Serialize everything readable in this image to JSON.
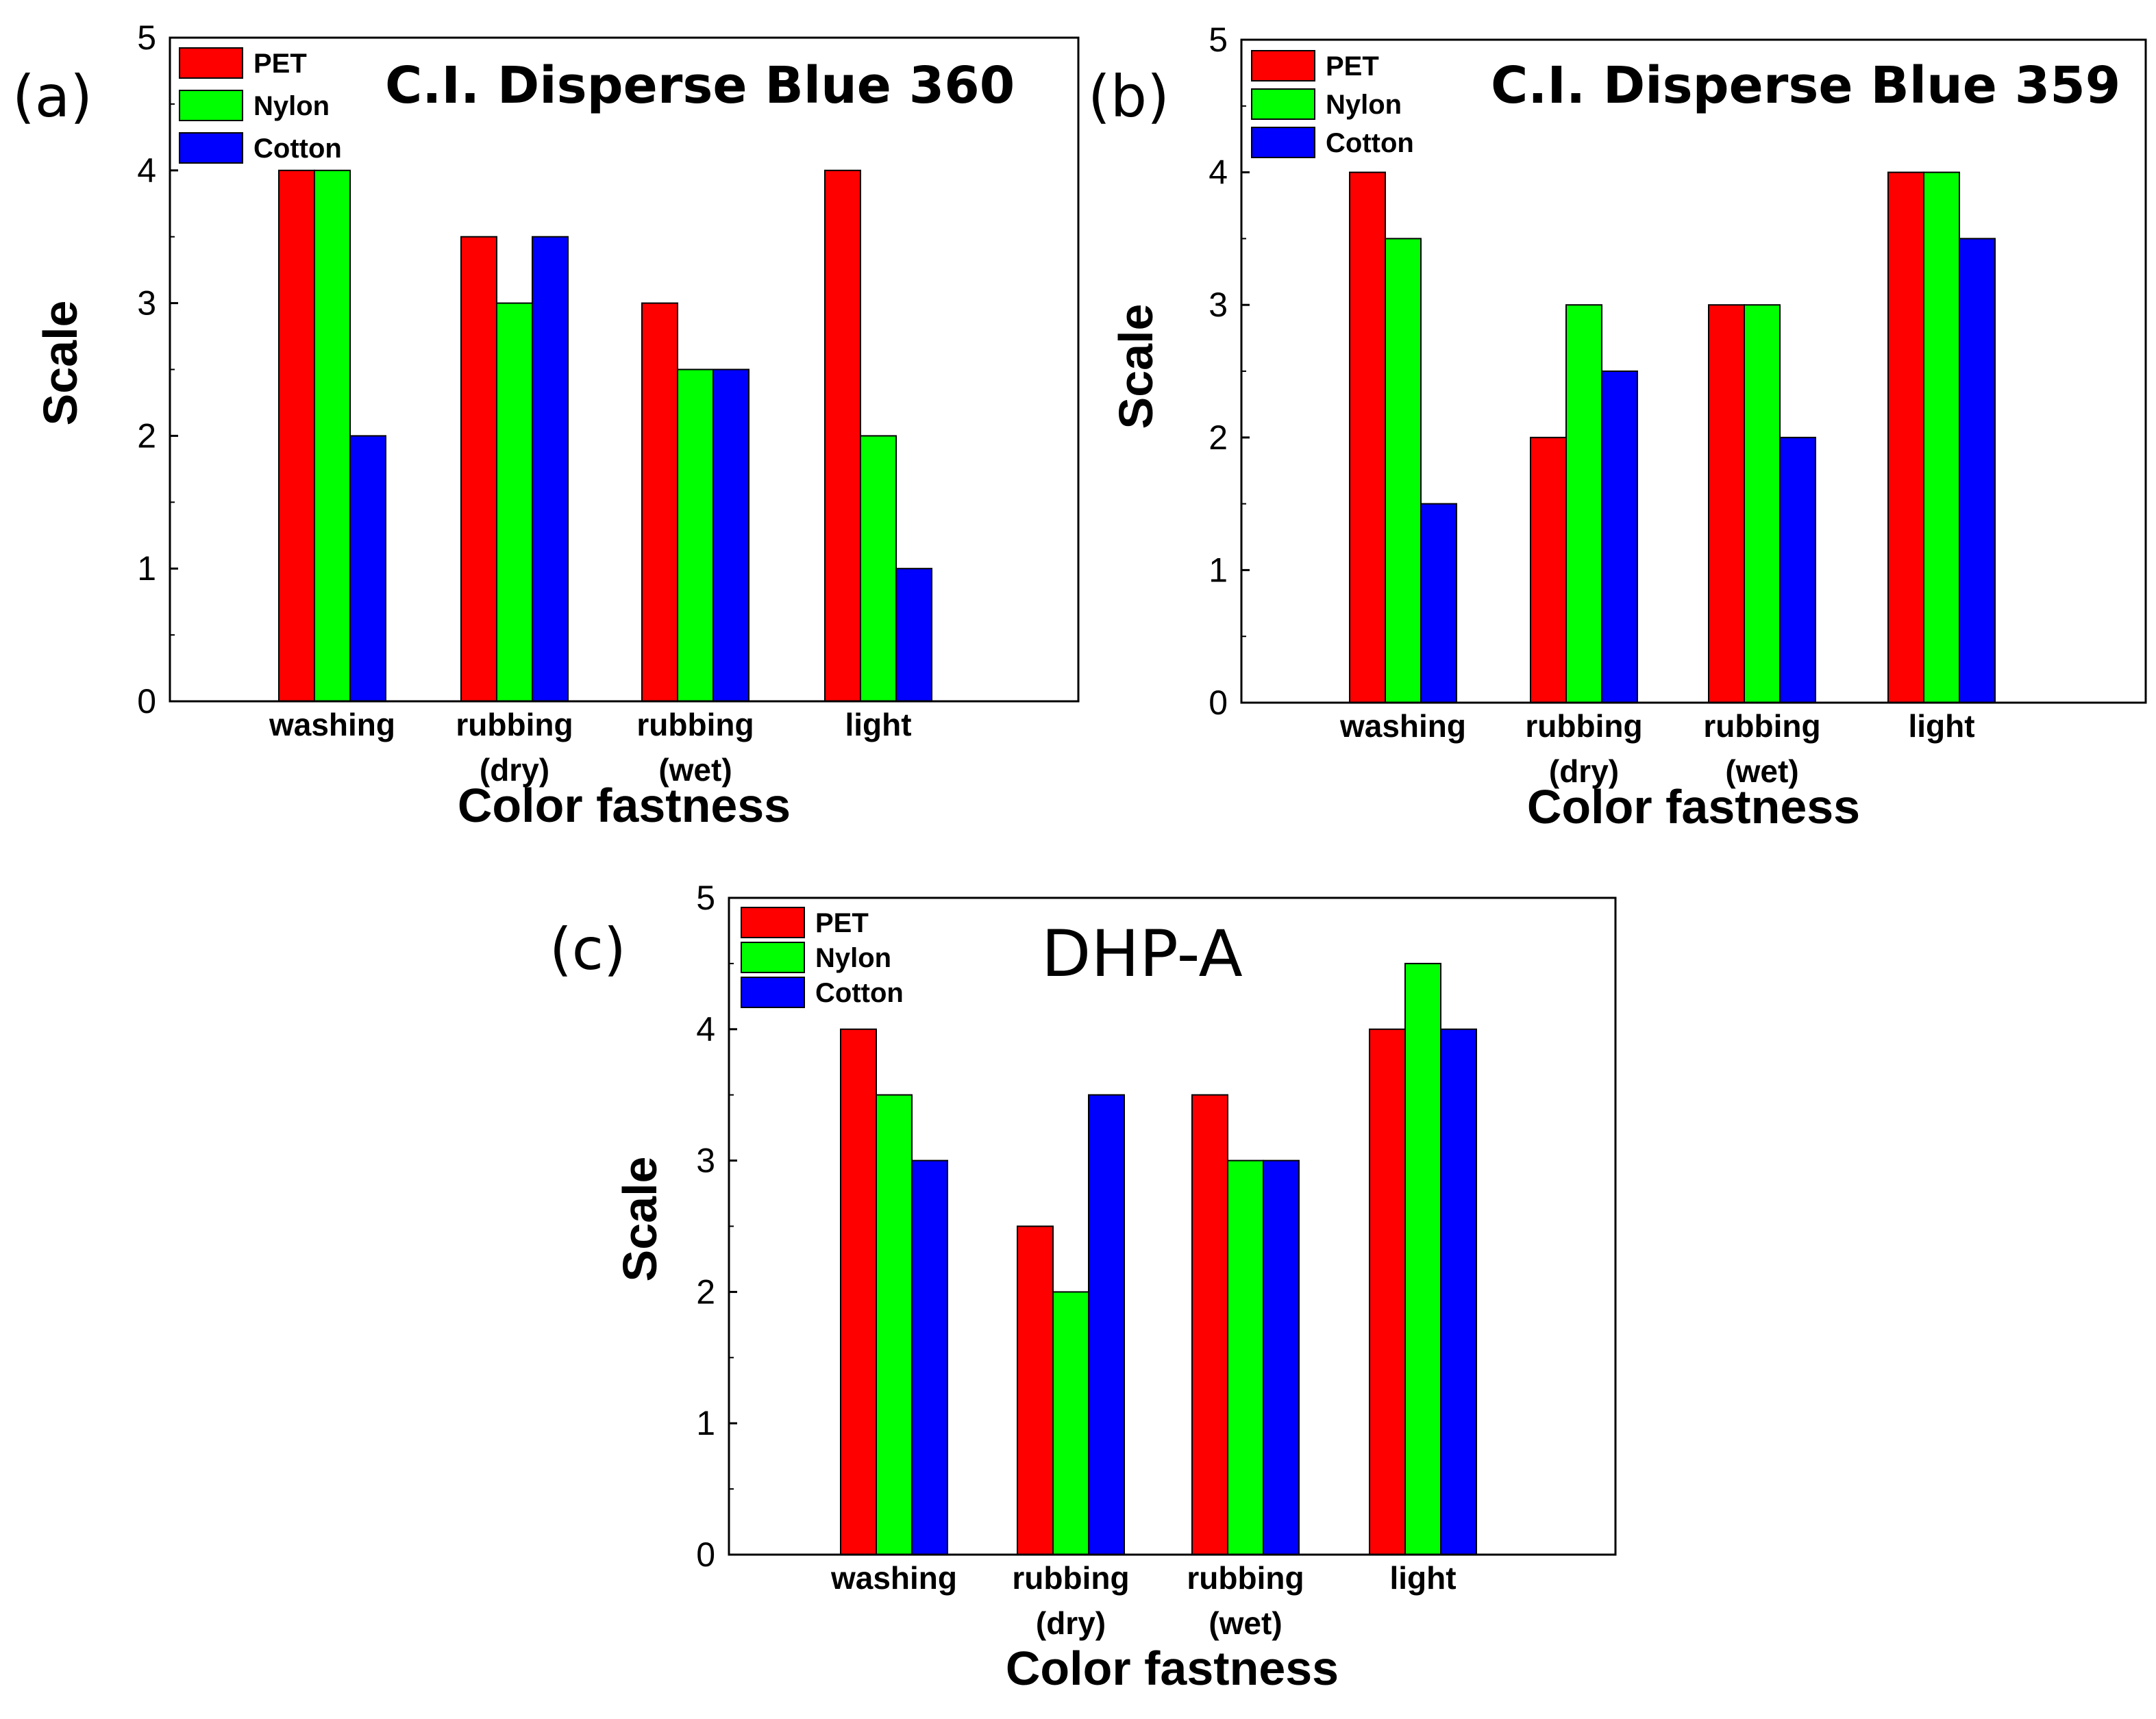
{
  "figure": {
    "background": "#ffffff"
  },
  "series_colors": {
    "PET": "#ff0000",
    "Nylon": "#00ff00",
    "Cotton": "#0000ff"
  },
  "chart_data": [
    {
      "type": "bar",
      "panel_label": "(a)",
      "title": "C.I. Disperse Blue 360",
      "xlabel": "Color fastness",
      "ylabel": "Scale",
      "ylim": [
        0,
        5
      ],
      "yticks": [
        "0",
        "1",
        "2",
        "3",
        "4",
        "5"
      ],
      "categories": [
        [
          "washing"
        ],
        [
          "rubbing",
          "(dry)"
        ],
        [
          "rubbing",
          "(wet)"
        ],
        [
          "light"
        ]
      ],
      "legend": [
        "PET",
        "Nylon",
        "Cotton"
      ],
      "legend_position": "top-left",
      "series": [
        {
          "name": "PET",
          "values": [
            4,
            3.5,
            3,
            4
          ]
        },
        {
          "name": "Nylon",
          "values": [
            4,
            3,
            2.5,
            2
          ]
        },
        {
          "name": "Cotton",
          "values": [
            2,
            3.5,
            2.5,
            1
          ]
        }
      ]
    },
    {
      "type": "bar",
      "panel_label": "(b)",
      "title": "C.I. Disperse Blue 359",
      "xlabel": "Color fastness",
      "ylabel": "Scale",
      "ylim": [
        0,
        5
      ],
      "yticks": [
        "0",
        "1",
        "2",
        "3",
        "4",
        "5"
      ],
      "categories": [
        [
          "washing"
        ],
        [
          "rubbing",
          "(dry)"
        ],
        [
          "rubbing",
          "(wet)"
        ],
        [
          "light"
        ]
      ],
      "legend": [
        "PET",
        "Nylon",
        "Cotton"
      ],
      "legend_position": "top-left",
      "series": [
        {
          "name": "PET",
          "values": [
            4,
            2,
            3,
            4
          ]
        },
        {
          "name": "Nylon",
          "values": [
            3.5,
            3,
            3,
            4
          ]
        },
        {
          "name": "Cotton",
          "values": [
            1.5,
            2.5,
            2,
            3.5
          ]
        }
      ]
    },
    {
      "type": "bar",
      "panel_label": "(c)",
      "title": "DHP-A",
      "xlabel": "Color fastness",
      "ylabel": "Scale",
      "ylim": [
        0,
        5
      ],
      "yticks": [
        "0",
        "1",
        "2",
        "3",
        "4",
        "5"
      ],
      "categories": [
        [
          "washing"
        ],
        [
          "rubbing",
          "(dry)"
        ],
        [
          "rubbing",
          "(wet)"
        ],
        [
          "light"
        ]
      ],
      "legend": [
        "PET",
        "Nylon",
        "Cotton"
      ],
      "legend_position": "top-left",
      "series": [
        {
          "name": "PET",
          "values": [
            4,
            2.5,
            3.5,
            4
          ]
        },
        {
          "name": "Nylon",
          "values": [
            3.5,
            2,
            3,
            4.5
          ]
        },
        {
          "name": "Cotton",
          "values": [
            3,
            3.5,
            3,
            4
          ]
        }
      ]
    }
  ]
}
